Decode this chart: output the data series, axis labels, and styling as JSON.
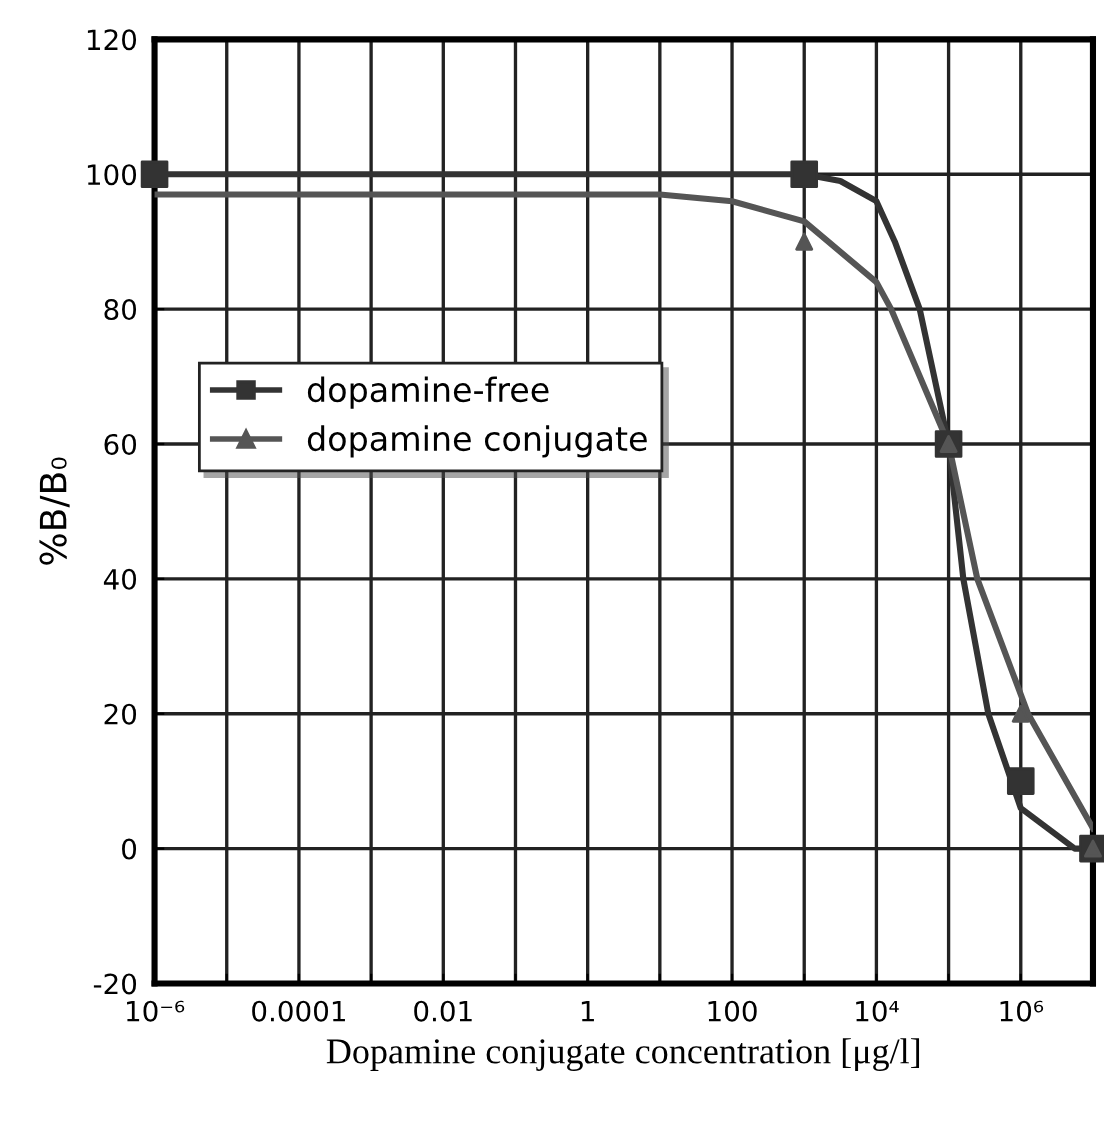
{
  "chart_data": {
    "type": "line",
    "xlabel": "Dopamine conjugate concentration [μg/l]",
    "ylabel": "%B/B₀",
    "log": "x",
    "xlim": [
      1e-06,
      10000000.0
    ],
    "ylim": [
      -20,
      120
    ],
    "xticks": [
      {
        "value": 1e-06,
        "label": "10⁻⁶"
      },
      {
        "value": 1e-05,
        "label": null
      },
      {
        "value": 0.0001,
        "label": "0.0001"
      },
      {
        "value": 0.001,
        "label": null
      },
      {
        "value": 0.01,
        "label": "0.01"
      },
      {
        "value": 0.1,
        "label": null
      },
      1,
      {
        "value": 10,
        "label": null
      },
      100,
      {
        "value": 1000,
        "label": null
      },
      {
        "value": 10000,
        "label": "10⁴"
      },
      {
        "value": 100000,
        "label": null
      },
      {
        "value": 1000000,
        "label": "10⁶"
      },
      {
        "value": 10000000,
        "label": null
      }
    ],
    "yticks": [
      -20,
      0,
      20,
      40,
      60,
      80,
      100,
      120
    ],
    "grid": true,
    "legend": "left",
    "series": [
      {
        "name": "dopamine-free",
        "type": "scatter",
        "marker": "square",
        "color": "#333333",
        "x": [
          1e-06,
          1000,
          100000,
          1000000,
          10000000
        ],
        "values": [
          100,
          100,
          60,
          10,
          0
        ]
      },
      {
        "name": "dopamine conjugate",
        "type": "scatter",
        "marker": "triangle",
        "color": "#555555",
        "x": [
          1000,
          100000,
          1000000,
          10000000
        ],
        "values": [
          90,
          60,
          20,
          0
        ]
      },
      {
        "color": "#333333",
        "x": [
          1e-06,
          1000,
          3162,
          10000,
          18000,
          39800,
          100000,
          160000,
          355000,
          1000000,
          5600000,
          10000000
        ],
        "values": [
          100,
          100,
          99,
          96,
          90,
          80,
          60,
          40,
          20,
          6,
          0,
          0
        ]
      },
      {
        "color": "#555555",
        "x": [
          1e-06,
          10,
          100,
          1000,
          10000,
          16000,
          100000,
          250000,
          1260000,
          10000000
        ],
        "values": [
          97,
          97,
          96,
          93,
          84,
          80,
          60,
          40,
          20,
          3
        ]
      }
    ]
  }
}
